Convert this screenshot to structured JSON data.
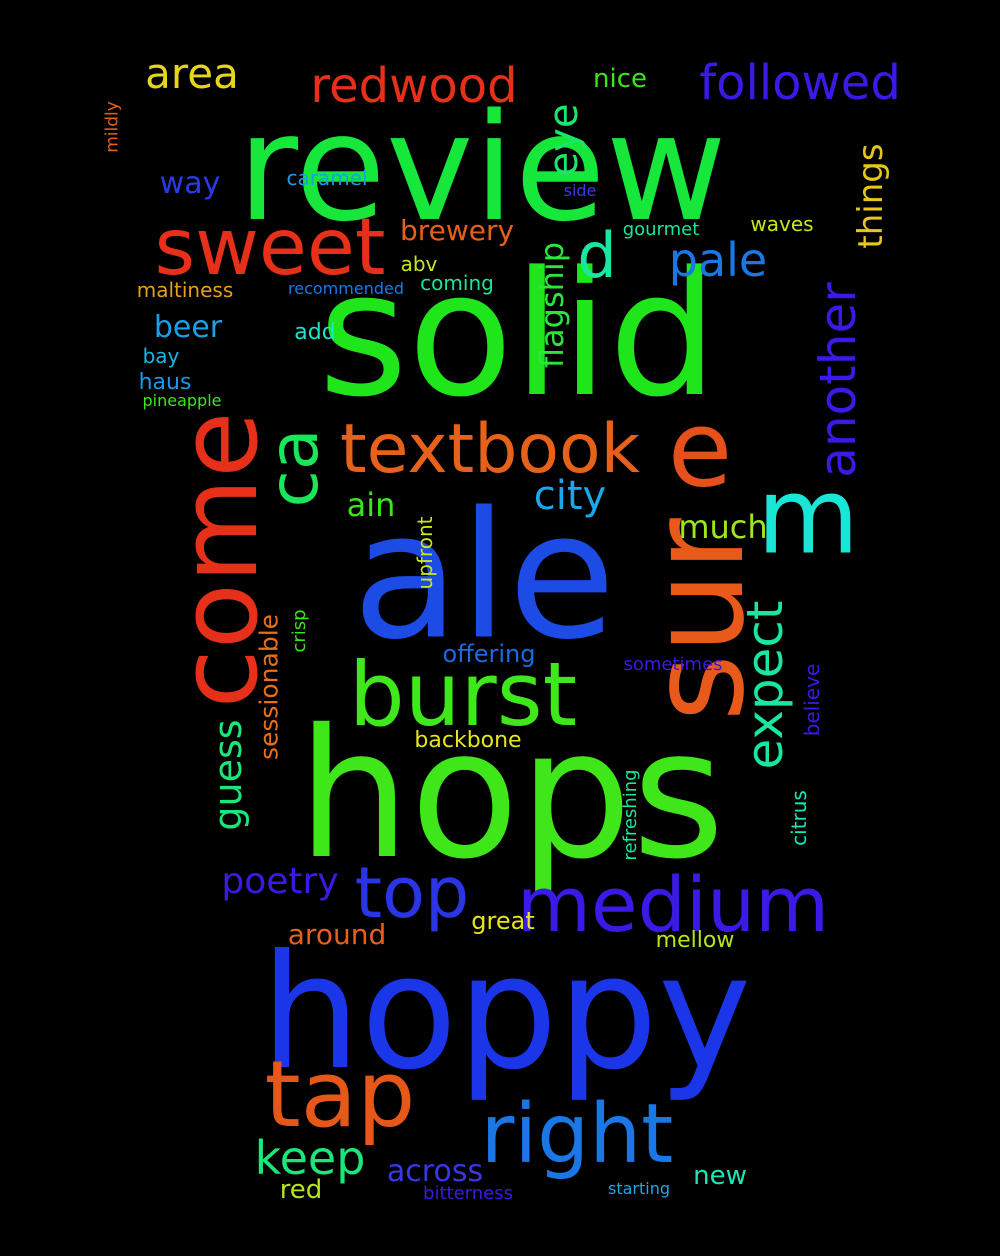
{
  "words": [
    {
      "text": "review",
      "color": "#17e63a",
      "vertical": false
    },
    {
      "text": "solid",
      "color": "#1ee61a",
      "vertical": false
    },
    {
      "text": "ale",
      "color": "#1d4be6",
      "vertical": false
    },
    {
      "text": "hops",
      "color": "#3fe619",
      "vertical": false
    },
    {
      "text": "hoppy",
      "color": "#1b35e8",
      "vertical": false
    },
    {
      "text": "sur",
      "color": "#e85a1a",
      "vertical": true
    },
    {
      "text": "come",
      "color": "#e6301a",
      "vertical": true
    },
    {
      "text": "burst",
      "color": "#3ee81a",
      "vertical": false
    },
    {
      "text": "textbook",
      "color": "#e6611a",
      "vertical": false
    },
    {
      "text": "sweet",
      "color": "#e6301a",
      "vertical": false
    },
    {
      "text": "right",
      "color": "#1a78e6",
      "vertical": false
    },
    {
      "text": "tap",
      "color": "#e6581a",
      "vertical": false
    },
    {
      "text": "medium",
      "color": "#3a1ae6",
      "vertical": false
    },
    {
      "text": "e",
      "color": "#e6501a",
      "vertical": false
    },
    {
      "text": "m",
      "color": "#1ae6d6",
      "vertical": false
    },
    {
      "text": "ca",
      "color": "#1ae65a",
      "vertical": true
    },
    {
      "text": "top",
      "color": "#2a35e6",
      "vertical": false
    },
    {
      "text": "redwood",
      "color": "#e6301a",
      "vertical": false
    },
    {
      "text": "followed",
      "color": "#3a1ae6",
      "vertical": false
    },
    {
      "text": "expect",
      "color": "#1ae6a0",
      "vertical": true
    },
    {
      "text": "another",
      "color": "#3a1ae6",
      "vertical": true
    },
    {
      "text": "d",
      "color": "#1ae6a0",
      "vertical": false
    },
    {
      "text": "pale",
      "color": "#1a78e6",
      "vertical": false
    },
    {
      "text": "area",
      "color": "#e6d61a",
      "vertical": false
    },
    {
      "text": "keep",
      "color": "#1ae67a",
      "vertical": false
    },
    {
      "text": "city",
      "color": "#1aa8e6",
      "vertical": false
    },
    {
      "text": "eye",
      "color": "#1ae66a",
      "vertical": true
    },
    {
      "text": "things",
      "color": "#e6c81a",
      "vertical": true
    },
    {
      "text": "guess",
      "color": "#1ae67a",
      "vertical": true
    },
    {
      "text": "poetry",
      "color": "#3a1ae6",
      "vertical": false
    },
    {
      "text": "flagship",
      "color": "#2ae63a",
      "vertical": true
    },
    {
      "text": "much",
      "color": "#a0e61a",
      "vertical": false
    },
    {
      "text": "ain",
      "color": "#3ae61a",
      "vertical": false
    },
    {
      "text": "brewery",
      "color": "#e6601a",
      "vertical": false
    },
    {
      "text": "beer",
      "color": "#1aa0e6",
      "vertical": false
    },
    {
      "text": "way",
      "color": "#2a3ae6",
      "vertical": false
    },
    {
      "text": "nice",
      "color": "#3ae61a",
      "vertical": false
    },
    {
      "text": "across",
      "color": "#3a35e6",
      "vertical": false
    },
    {
      "text": "around",
      "color": "#e6601a",
      "vertical": false
    },
    {
      "text": "sessionable",
      "color": "#e6701a",
      "vertical": true
    },
    {
      "text": "offering",
      "color": "#1a6ae6",
      "vertical": false
    },
    {
      "text": "new",
      "color": "#1ae6b6",
      "vertical": false
    },
    {
      "text": "red",
      "color": "#b6e61a",
      "vertical": false
    },
    {
      "text": "great",
      "color": "#e6e61a",
      "vertical": false
    },
    {
      "text": "mellow",
      "color": "#b6e61a",
      "vertical": false
    },
    {
      "text": "backbone",
      "color": "#e6e61a",
      "vertical": false
    },
    {
      "text": "upfront",
      "color": "#c8e61a",
      "vertical": true
    },
    {
      "text": "citrus",
      "color": "#1ae6b6",
      "vertical": true
    },
    {
      "text": "believe",
      "color": "#3a1ae6",
      "vertical": true
    },
    {
      "text": "refreshing",
      "color": "#1ae6a0",
      "vertical": true
    },
    {
      "text": "crisp",
      "color": "#3ae61a",
      "vertical": true
    },
    {
      "text": "haus",
      "color": "#1a9ae6",
      "vertical": false
    },
    {
      "text": "bay",
      "color": "#1ab6e6",
      "vertical": false
    },
    {
      "text": "add",
      "color": "#1ae6c8",
      "vertical": false
    },
    {
      "text": "abv",
      "color": "#c8e61a",
      "vertical": false
    },
    {
      "text": "coming",
      "color": "#1ae69a",
      "vertical": false
    },
    {
      "text": "gourmet",
      "color": "#1ae69a",
      "vertical": false
    },
    {
      "text": "waves",
      "color": "#c8e61a",
      "vertical": false
    },
    {
      "text": "caramel",
      "color": "#1aa0e6",
      "vertical": false
    },
    {
      "text": "maltiness",
      "color": "#e6a01a",
      "vertical": false
    },
    {
      "text": "sometimes",
      "color": "#3a1ae6",
      "vertical": false
    },
    {
      "text": "bitterness",
      "color": "#3a1ae6",
      "vertical": false
    },
    {
      "text": "recommended",
      "color": "#1a7ae6",
      "vertical": false
    },
    {
      "text": "starting",
      "color": "#1aa8e6",
      "vertical": false
    },
    {
      "text": "side",
      "color": "#3a3ae6",
      "vertical": false
    },
    {
      "text": "pineapple",
      "color": "#3ae61a",
      "vertical": false
    },
    {
      "text": "mildly",
      "color": "#e6601a",
      "vertical": true
    }
  ]
}
